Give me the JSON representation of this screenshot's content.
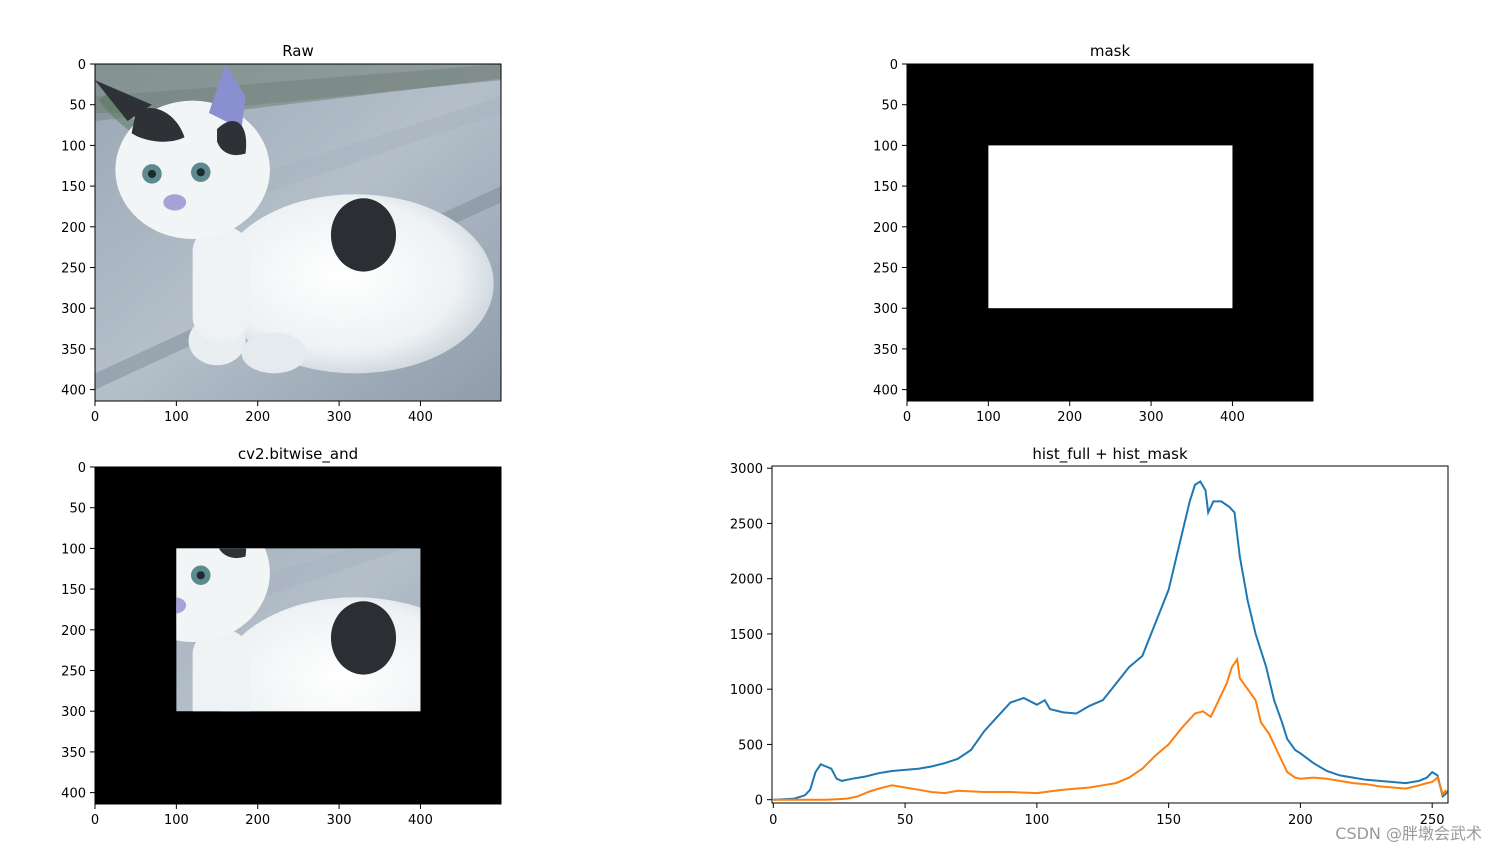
{
  "figure": {
    "watermark": "CSDN @胖墩会武术"
  },
  "colors": {
    "series_full": "#1f77b4",
    "series_mask": "#ff7f0e",
    "mask_background": "#000000",
    "mask_window": "#ffffff"
  },
  "chart_data": [
    {
      "type": "image",
      "title": "Raw",
      "content": "photo of a white kitten with grey patches sitting on a concrete step",
      "xlim": [
        0,
        499
      ],
      "ylim": [
        414,
        0
      ],
      "xticks": [
        0,
        100,
        200,
        300,
        400
      ],
      "yticks": [
        0,
        50,
        100,
        150,
        200,
        250,
        300,
        350,
        400
      ]
    },
    {
      "type": "image",
      "title": "mask",
      "content": "black image with white rectangle",
      "white_rect": {
        "x0": 100,
        "x1": 400,
        "y0": 100,
        "y1": 300
      },
      "xlim": [
        0,
        499
      ],
      "ylim": [
        414,
        0
      ],
      "xticks": [
        0,
        100,
        200,
        300,
        400
      ],
      "yticks": [
        0,
        50,
        100,
        150,
        200,
        250,
        300,
        350,
        400
      ]
    },
    {
      "type": "image",
      "title": "cv2.bitwise_and",
      "content": "kitten photo visible only inside the mask rectangle, black elsewhere",
      "visible_rect": {
        "x0": 100,
        "x1": 400,
        "y0": 100,
        "y1": 300
      },
      "xlim": [
        0,
        499
      ],
      "ylim": [
        414,
        0
      ],
      "xticks": [
        0,
        100,
        200,
        300,
        400
      ],
      "yticks": [
        0,
        50,
        100,
        150,
        200,
        250,
        300,
        350,
        400
      ]
    },
    {
      "type": "line",
      "title": "hist_full + hist_mask",
      "xlim": [
        -0.5,
        256
      ],
      "ylim": [
        -30,
        3020
      ],
      "xticks": [
        0,
        50,
        100,
        150,
        200,
        250
      ],
      "yticks": [
        0,
        500,
        1000,
        1500,
        2000,
        2500,
        3000
      ],
      "series": [
        {
          "key": "full",
          "points": [
            [
              0,
              0
            ],
            [
              5,
              5
            ],
            [
              8,
              10
            ],
            [
              12,
              40
            ],
            [
              14,
              90
            ],
            [
              16,
              250
            ],
            [
              18,
              320
            ],
            [
              20,
              300
            ],
            [
              22,
              280
            ],
            [
              24,
              190
            ],
            [
              26,
              170
            ],
            [
              30,
              190
            ],
            [
              35,
              210
            ],
            [
              40,
              240
            ],
            [
              45,
              260
            ],
            [
              50,
              270
            ],
            [
              55,
              280
            ],
            [
              60,
              300
            ],
            [
              65,
              330
            ],
            [
              70,
              370
            ],
            [
              75,
              450
            ],
            [
              80,
              620
            ],
            [
              85,
              750
            ],
            [
              90,
              880
            ],
            [
              95,
              920
            ],
            [
              100,
              860
            ],
            [
              103,
              900
            ],
            [
              105,
              820
            ],
            [
              110,
              790
            ],
            [
              115,
              780
            ],
            [
              120,
              850
            ],
            [
              125,
              900
            ],
            [
              130,
              1050
            ],
            [
              135,
              1200
            ],
            [
              140,
              1300
            ],
            [
              145,
              1600
            ],
            [
              150,
              1900
            ],
            [
              153,
              2200
            ],
            [
              155,
              2400
            ],
            [
              158,
              2700
            ],
            [
              160,
              2850
            ],
            [
              162,
              2880
            ],
            [
              164,
              2800
            ],
            [
              165,
              2600
            ],
            [
              167,
              2700
            ],
            [
              170,
              2700
            ],
            [
              173,
              2650
            ],
            [
              175,
              2600
            ],
            [
              177,
              2200
            ],
            [
              180,
              1800
            ],
            [
              183,
              1500
            ],
            [
              185,
              1350
            ],
            [
              187,
              1200
            ],
            [
              190,
              900
            ],
            [
              193,
              700
            ],
            [
              195,
              550
            ],
            [
              198,
              450
            ],
            [
              200,
              420
            ],
            [
              205,
              330
            ],
            [
              210,
              260
            ],
            [
              215,
              220
            ],
            [
              220,
              200
            ],
            [
              225,
              180
            ],
            [
              230,
              170
            ],
            [
              235,
              160
            ],
            [
              240,
              150
            ],
            [
              245,
              170
            ],
            [
              248,
              200
            ],
            [
              250,
              250
            ],
            [
              252,
              220
            ],
            [
              254,
              30
            ],
            [
              255,
              50
            ],
            [
              256,
              80
            ]
          ]
        },
        {
          "key": "mask",
          "points": [
            [
              0,
              0
            ],
            [
              10,
              0
            ],
            [
              20,
              0
            ],
            [
              25,
              5
            ],
            [
              28,
              10
            ],
            [
              32,
              30
            ],
            [
              36,
              70
            ],
            [
              40,
              100
            ],
            [
              45,
              130
            ],
            [
              50,
              110
            ],
            [
              55,
              90
            ],
            [
              60,
              70
            ],
            [
              65,
              60
            ],
            [
              70,
              80
            ],
            [
              80,
              70
            ],
            [
              90,
              70
            ],
            [
              100,
              60
            ],
            [
              105,
              75
            ],
            [
              110,
              90
            ],
            [
              120,
              110
            ],
            [
              125,
              130
            ],
            [
              130,
              150
            ],
            [
              135,
              200
            ],
            [
              140,
              280
            ],
            [
              145,
              400
            ],
            [
              150,
              500
            ],
            [
              155,
              650
            ],
            [
              160,
              780
            ],
            [
              163,
              800
            ],
            [
              166,
              750
            ],
            [
              168,
              850
            ],
            [
              170,
              950
            ],
            [
              172,
              1050
            ],
            [
              174,
              1200
            ],
            [
              176,
              1270
            ],
            [
              177,
              1100
            ],
            [
              180,
              1000
            ],
            [
              183,
              900
            ],
            [
              185,
              700
            ],
            [
              188,
              600
            ],
            [
              190,
              500
            ],
            [
              192,
              400
            ],
            [
              195,
              250
            ],
            [
              198,
              200
            ],
            [
              200,
              190
            ],
            [
              205,
              200
            ],
            [
              210,
              190
            ],
            [
              215,
              170
            ],
            [
              220,
              150
            ],
            [
              225,
              140
            ],
            [
              230,
              120
            ],
            [
              235,
              110
            ],
            [
              240,
              100
            ],
            [
              245,
              130
            ],
            [
              248,
              150
            ],
            [
              250,
              160
            ],
            [
              252,
              200
            ],
            [
              254,
              50
            ],
            [
              255,
              80
            ],
            [
              256,
              70
            ]
          ]
        }
      ]
    }
  ]
}
